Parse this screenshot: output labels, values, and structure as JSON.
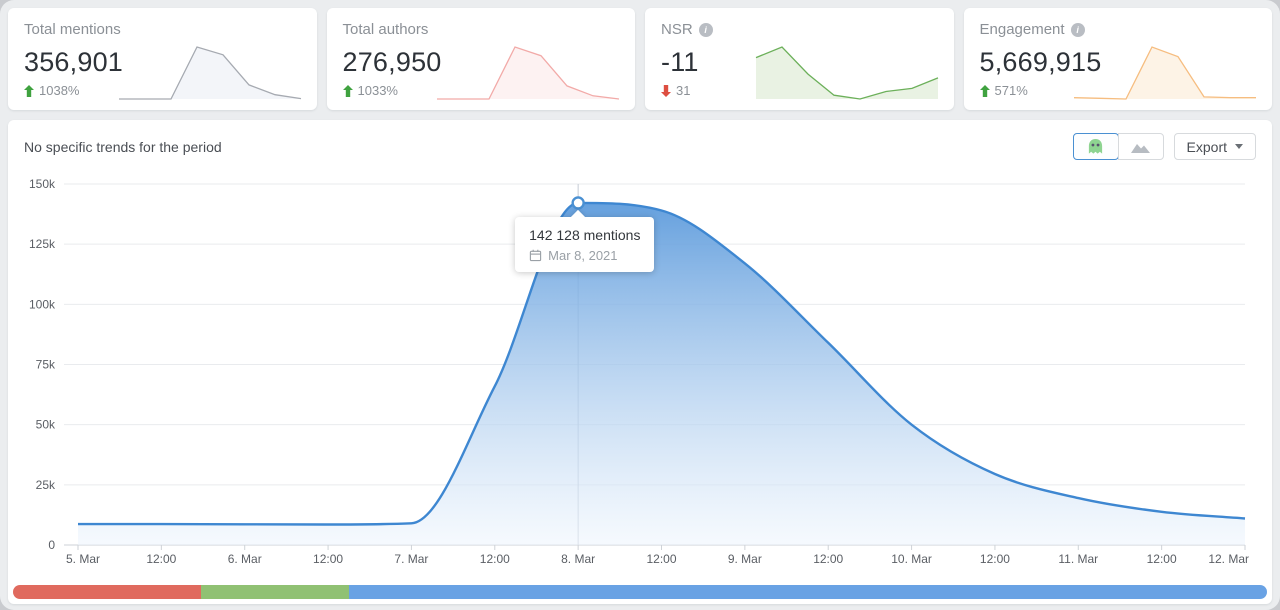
{
  "cards": [
    {
      "title": "Total mentions",
      "value": "356,901",
      "change": "1038%",
      "direction": "up",
      "spark": {
        "line": "#a6aab1",
        "fill": "#f3f5f9",
        "values": [
          9,
          9,
          9,
          142,
          122,
          45,
          20,
          10
        ]
      }
    },
    {
      "title": "Total authors",
      "value": "276,950",
      "change": "1033%",
      "direction": "up",
      "spark": {
        "line": "#f2aaa8",
        "fill": "#fdf2f2",
        "values": [
          9,
          9,
          9,
          140,
          118,
          42,
          17,
          9
        ]
      }
    },
    {
      "title": "NSR",
      "has_info": true,
      "value": "-11",
      "change": "31",
      "direction": "down",
      "spark": {
        "line": "#6cb05a",
        "fill": "#e9f2e3",
        "values": [
          60,
          74,
          38,
          10,
          5,
          15,
          19,
          33
        ]
      }
    },
    {
      "title": "Engagement",
      "has_info": true,
      "value": "5,669,915",
      "change": "571%",
      "direction": "up",
      "spark": {
        "line": "#f6bd80",
        "fill": "#fdf3e6",
        "values": [
          6,
          5,
          4,
          80,
          66,
          7,
          6,
          6
        ]
      }
    }
  ],
  "panel": {
    "trend_note": "No specific trends for the period",
    "export_label": "Export",
    "toggle": {
      "active": "mentions-view",
      "options": [
        "mentions-view",
        "area-view"
      ]
    }
  },
  "chart_data": {
    "type": "area",
    "series_name": "mentions",
    "x": [
      "5. Mar",
      "12:00",
      "6. Mar",
      "12:00",
      "7. Mar",
      "12:00",
      "8. Mar",
      "12:00",
      "9. Mar",
      "12:00",
      "10. Mar",
      "12:00",
      "11. Mar",
      "12:00",
      "12. Mar"
    ],
    "values": [
      8700,
      8700,
      8600,
      8500,
      9000,
      66000,
      142128,
      139000,
      117000,
      84000,
      50000,
      29500,
      19500,
      13800,
      11000
    ],
    "ylim": [
      0,
      150000
    ],
    "ytick_labels": [
      "0",
      "25k",
      "50k",
      "75k",
      "100k",
      "125k",
      "150k"
    ],
    "grid": "horizontal",
    "line_color": "#3e87d1",
    "fill_top": "#5d9bdc",
    "fill_bottom": "#eef5fd",
    "highlight": {
      "index": 6,
      "value": 142128,
      "label": "142 128 mentions",
      "date": "Mar 8, 2021"
    }
  },
  "range_bar": {
    "segments": [
      {
        "name": "negative",
        "color": "#e06a5e",
        "pct": 15.0
      },
      {
        "name": "positive",
        "color": "#90c173",
        "pct": 11.8
      },
      {
        "name": "neutral",
        "color": "#69a2e4",
        "pct": 73.2
      }
    ]
  },
  "colors": {
    "up": "#3fa23f",
    "down": "#dd4e41",
    "accent": "#4a90d2"
  }
}
